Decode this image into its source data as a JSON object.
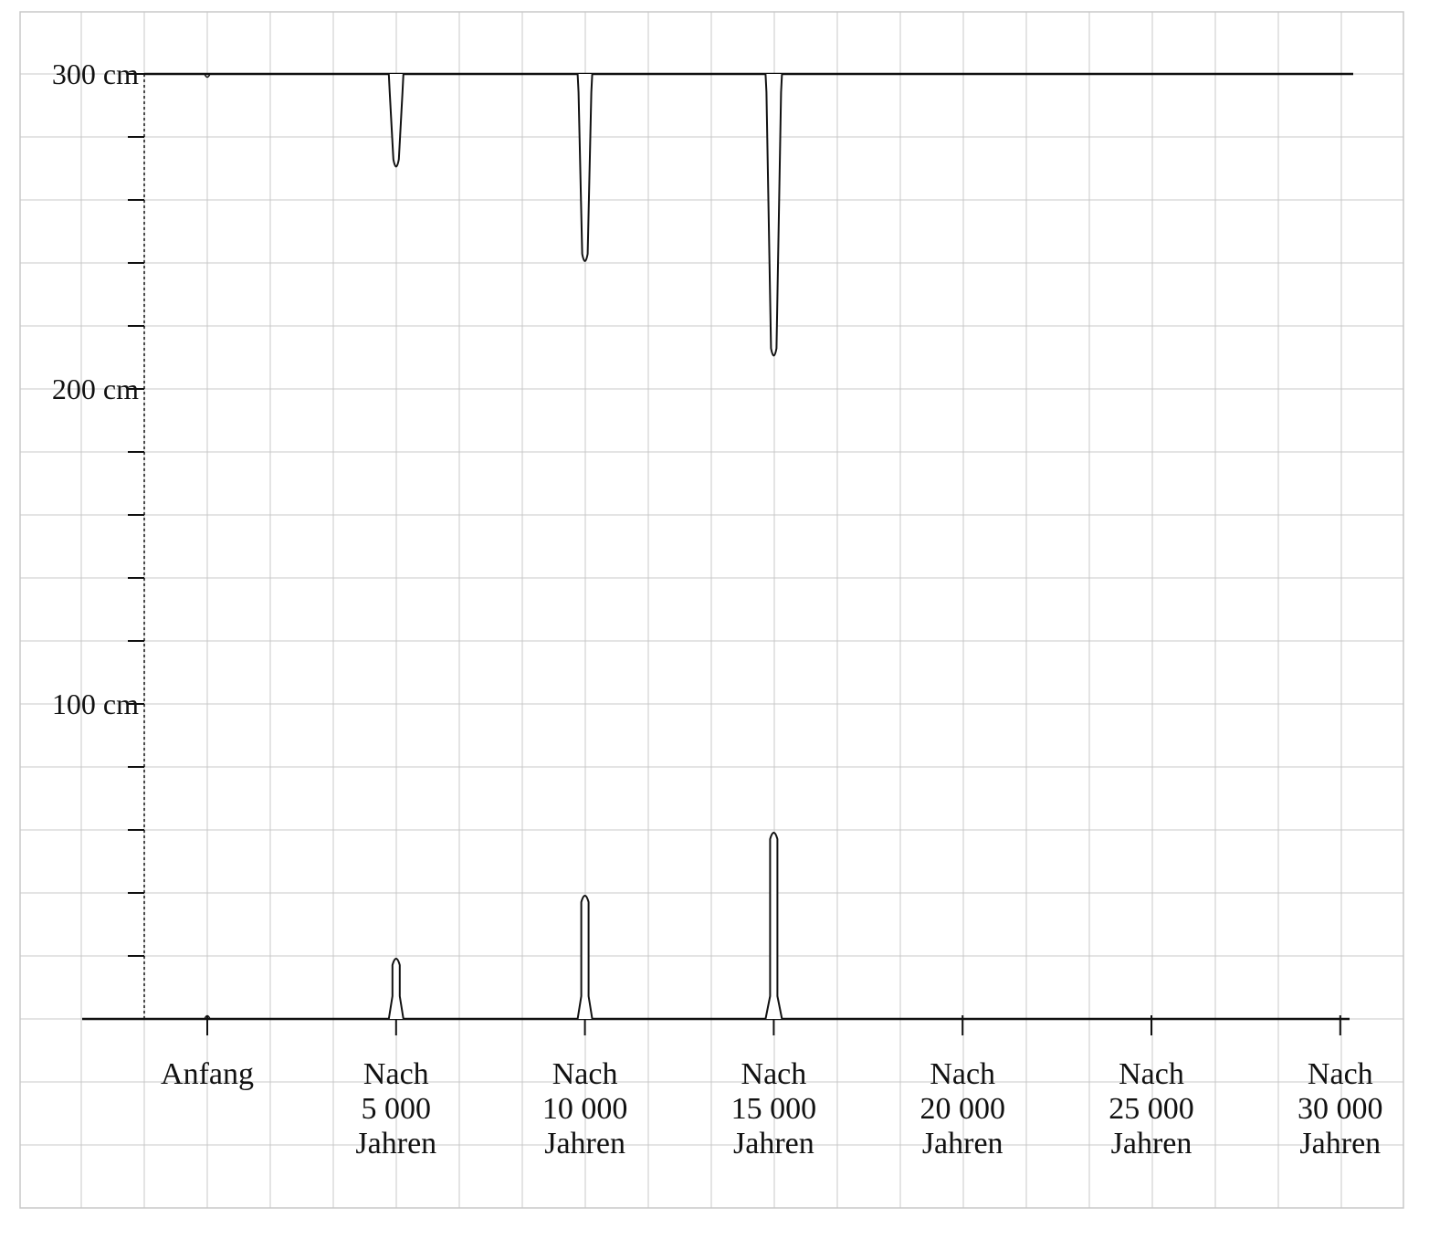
{
  "y_axis": {
    "labels": [
      "300 cm",
      "200 cm",
      "100 cm"
    ]
  },
  "x_axis": {
    "categories": [
      [
        "Anfang"
      ],
      [
        "Nach",
        "5 000",
        "Jahren"
      ],
      [
        "Nach",
        "10 000",
        "Jahren"
      ],
      [
        "Nach",
        "15 000",
        "Jahren"
      ],
      [
        "Nach",
        "20 000",
        "Jahren"
      ],
      [
        "Nach",
        "25 000",
        "Jahren"
      ],
      [
        "Nach",
        "30 000",
        "Jahren"
      ]
    ]
  },
  "formations": {
    "ceiling_cm": 300,
    "floor_cm": 0,
    "stalactite_length_cm": [
      0,
      30,
      60,
      90
    ],
    "stalagmite_height_cm": [
      0,
      20,
      40,
      60
    ]
  },
  "colors": {
    "grid": "#c8c8c8",
    "ink": "#111111",
    "background": "#ffffff"
  }
}
